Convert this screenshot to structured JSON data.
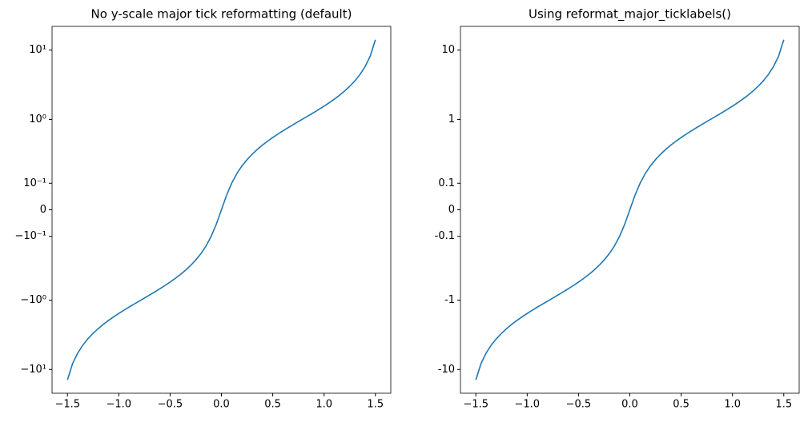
{
  "chart_data": [
    {
      "type": "line",
      "title": "No y-scale major tick reformatting (default)",
      "yscale": "asinh",
      "linear_width": 0.1,
      "color": "#1f77b4",
      "x": [
        -1.5,
        -1.45,
        -1.4,
        -1.35,
        -1.3,
        -1.25,
        -1.2,
        -1.15,
        -1.1,
        -1.05,
        -1.0,
        -0.95,
        -0.9,
        -0.85,
        -0.8,
        -0.75,
        -0.7,
        -0.65,
        -0.6,
        -0.55,
        -0.5,
        -0.45,
        -0.4,
        -0.35,
        -0.3,
        -0.25,
        -0.2,
        -0.15,
        -0.1,
        -0.05,
        0,
        0.05,
        0.1,
        0.15,
        0.2,
        0.25,
        0.3,
        0.35,
        0.4,
        0.45,
        0.5,
        0.55,
        0.6,
        0.65,
        0.7,
        0.75,
        0.8,
        0.85,
        0.9,
        0.95,
        1.0,
        1.05,
        1.1,
        1.15,
        1.2,
        1.25,
        1.3,
        1.35,
        1.4,
        1.45,
        1.5
      ],
      "values": [
        -14.101,
        -8.238,
        -5.798,
        -4.455,
        -3.602,
        -3.01,
        -2.572,
        -2.234,
        -1.965,
        -1.743,
        -1.557,
        -1.398,
        -1.26,
        -1.138,
        -1.03,
        -0.932,
        -0.842,
        -0.76,
        -0.684,
        -0.613,
        -0.546,
        -0.483,
        -0.423,
        -0.365,
        -0.309,
        -0.255,
        -0.203,
        -0.151,
        -0.1,
        -0.05,
        0,
        0.05,
        0.1,
        0.151,
        0.203,
        0.255,
        0.309,
        0.365,
        0.423,
        0.483,
        0.546,
        0.613,
        0.684,
        0.76,
        0.842,
        0.932,
        1.03,
        1.138,
        1.26,
        1.398,
        1.557,
        1.743,
        1.965,
        2.234,
        2.572,
        3.01,
        3.602,
        4.455,
        5.798,
        8.238,
        14.101
      ],
      "xlim": [
        -1.65,
        1.65
      ],
      "ylim": [
        -22,
        22
      ],
      "xticks": [
        {
          "value": -1.5,
          "label": "−1.5"
        },
        {
          "value": -1.0,
          "label": "−1.0"
        },
        {
          "value": -0.5,
          "label": "−0.5"
        },
        {
          "value": 0,
          "label": "0.0"
        },
        0.5,
        {
          "value": 1,
          "label": "1.0"
        },
        1.5
      ],
      "yticks": [
        {
          "value": 10,
          "label": "10¹"
        },
        {
          "value": 1,
          "label": "10⁰"
        },
        {
          "value": 0.1,
          "label": "10⁻¹"
        },
        0,
        {
          "value": -0.1,
          "label": "−10⁻¹"
        },
        {
          "value": -1,
          "label": "−10⁰"
        },
        {
          "value": -10,
          "label": "−10¹"
        }
      ]
    },
    {
      "type": "line",
      "title": "Using reformat_major_ticklabels()",
      "yscale": "asinh",
      "linear_width": 0.1,
      "color": "#1f77b4",
      "x": [
        -1.5,
        -1.45,
        -1.4,
        -1.35,
        -1.3,
        -1.25,
        -1.2,
        -1.15,
        -1.1,
        -1.05,
        -1.0,
        -0.95,
        -0.9,
        -0.85,
        -0.8,
        -0.75,
        -0.7,
        -0.65,
        -0.6,
        -0.55,
        -0.5,
        -0.45,
        -0.4,
        -0.35,
        -0.3,
        -0.25,
        -0.2,
        -0.15,
        -0.1,
        -0.05,
        0,
        0.05,
        0.1,
        0.15,
        0.2,
        0.25,
        0.3,
        0.35,
        0.4,
        0.45,
        0.5,
        0.55,
        0.6,
        0.65,
        0.7,
        0.75,
        0.8,
        0.85,
        0.9,
        0.95,
        1.0,
        1.05,
        1.1,
        1.15,
        1.2,
        1.25,
        1.3,
        1.35,
        1.4,
        1.45,
        1.5
      ],
      "values": [
        -14.101,
        -8.238,
        -5.798,
        -4.455,
        -3.602,
        -3.01,
        -2.572,
        -2.234,
        -1.965,
        -1.743,
        -1.557,
        -1.398,
        -1.26,
        -1.138,
        -1.03,
        -0.932,
        -0.842,
        -0.76,
        -0.684,
        -0.613,
        -0.546,
        -0.483,
        -0.423,
        -0.365,
        -0.309,
        -0.255,
        -0.203,
        -0.151,
        -0.1,
        -0.05,
        0,
        0.05,
        0.1,
        0.151,
        0.203,
        0.255,
        0.309,
        0.365,
        0.423,
        0.483,
        0.546,
        0.613,
        0.684,
        0.76,
        0.842,
        0.932,
        1.03,
        1.138,
        1.26,
        1.398,
        1.557,
        1.743,
        1.965,
        2.234,
        2.572,
        3.01,
        3.602,
        4.455,
        5.798,
        8.238,
        14.101
      ],
      "xlim": [
        -1.65,
        1.65
      ],
      "ylim": [
        -22,
        22
      ],
      "xticks": [
        {
          "value": -1.5,
          "label": "−1.5"
        },
        {
          "value": -1.0,
          "label": "−1.0"
        },
        {
          "value": -0.5,
          "label": "−0.5"
        },
        {
          "value": 0,
          "label": "0.0"
        },
        0.5,
        {
          "value": 1,
          "label": "1.0"
        },
        1.5
      ],
      "yticks": [
        10,
        1,
        0.1,
        0,
        -0.1,
        -1,
        -10
      ]
    }
  ]
}
